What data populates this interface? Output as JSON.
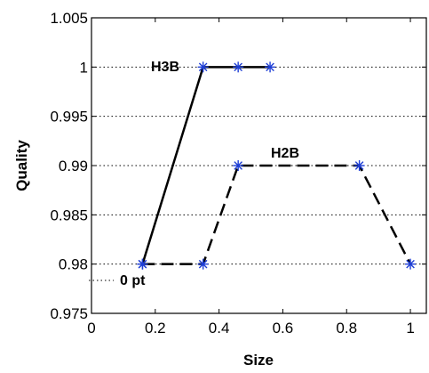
{
  "chart_data": {
    "type": "line",
    "xlabel": "Size",
    "ylabel": "Quality",
    "xlim": [
      0,
      1.05
    ],
    "ylim": [
      0.975,
      1.005
    ],
    "x_ticks": [
      0,
      0.2,
      0.4,
      0.6,
      0.8,
      1
    ],
    "x_tick_labels": [
      "0",
      "0.2",
      "0.4",
      "0.6",
      "0.8",
      "1"
    ],
    "y_ticks": [
      0.975,
      0.98,
      0.985,
      0.99,
      0.995,
      1,
      1.005
    ],
    "y_tick_labels": [
      "0.975",
      "0.98",
      "0.985",
      "0.99",
      "0.995",
      "1",
      "1.005"
    ],
    "grid": "horizontal-dotted",
    "series": [
      {
        "name": "H3B",
        "line_style": "solid",
        "color": "#000000",
        "marker_color": "#1f3fd6",
        "x": [
          0.16,
          0.35,
          0.46,
          0.56
        ],
        "y": [
          0.98,
          1.0,
          1.0,
          1.0
        ]
      },
      {
        "name": "H2B",
        "line_style": "dashed",
        "color": "#000000",
        "marker_color": "#1f3fd6",
        "x": [
          0.16,
          0.35,
          0.46,
          0.84,
          1.0
        ],
        "y": [
          0.98,
          0.98,
          0.99,
          0.99,
          0.98
        ]
      }
    ],
    "annotations": [
      {
        "text": "0 pt"
      }
    ]
  }
}
